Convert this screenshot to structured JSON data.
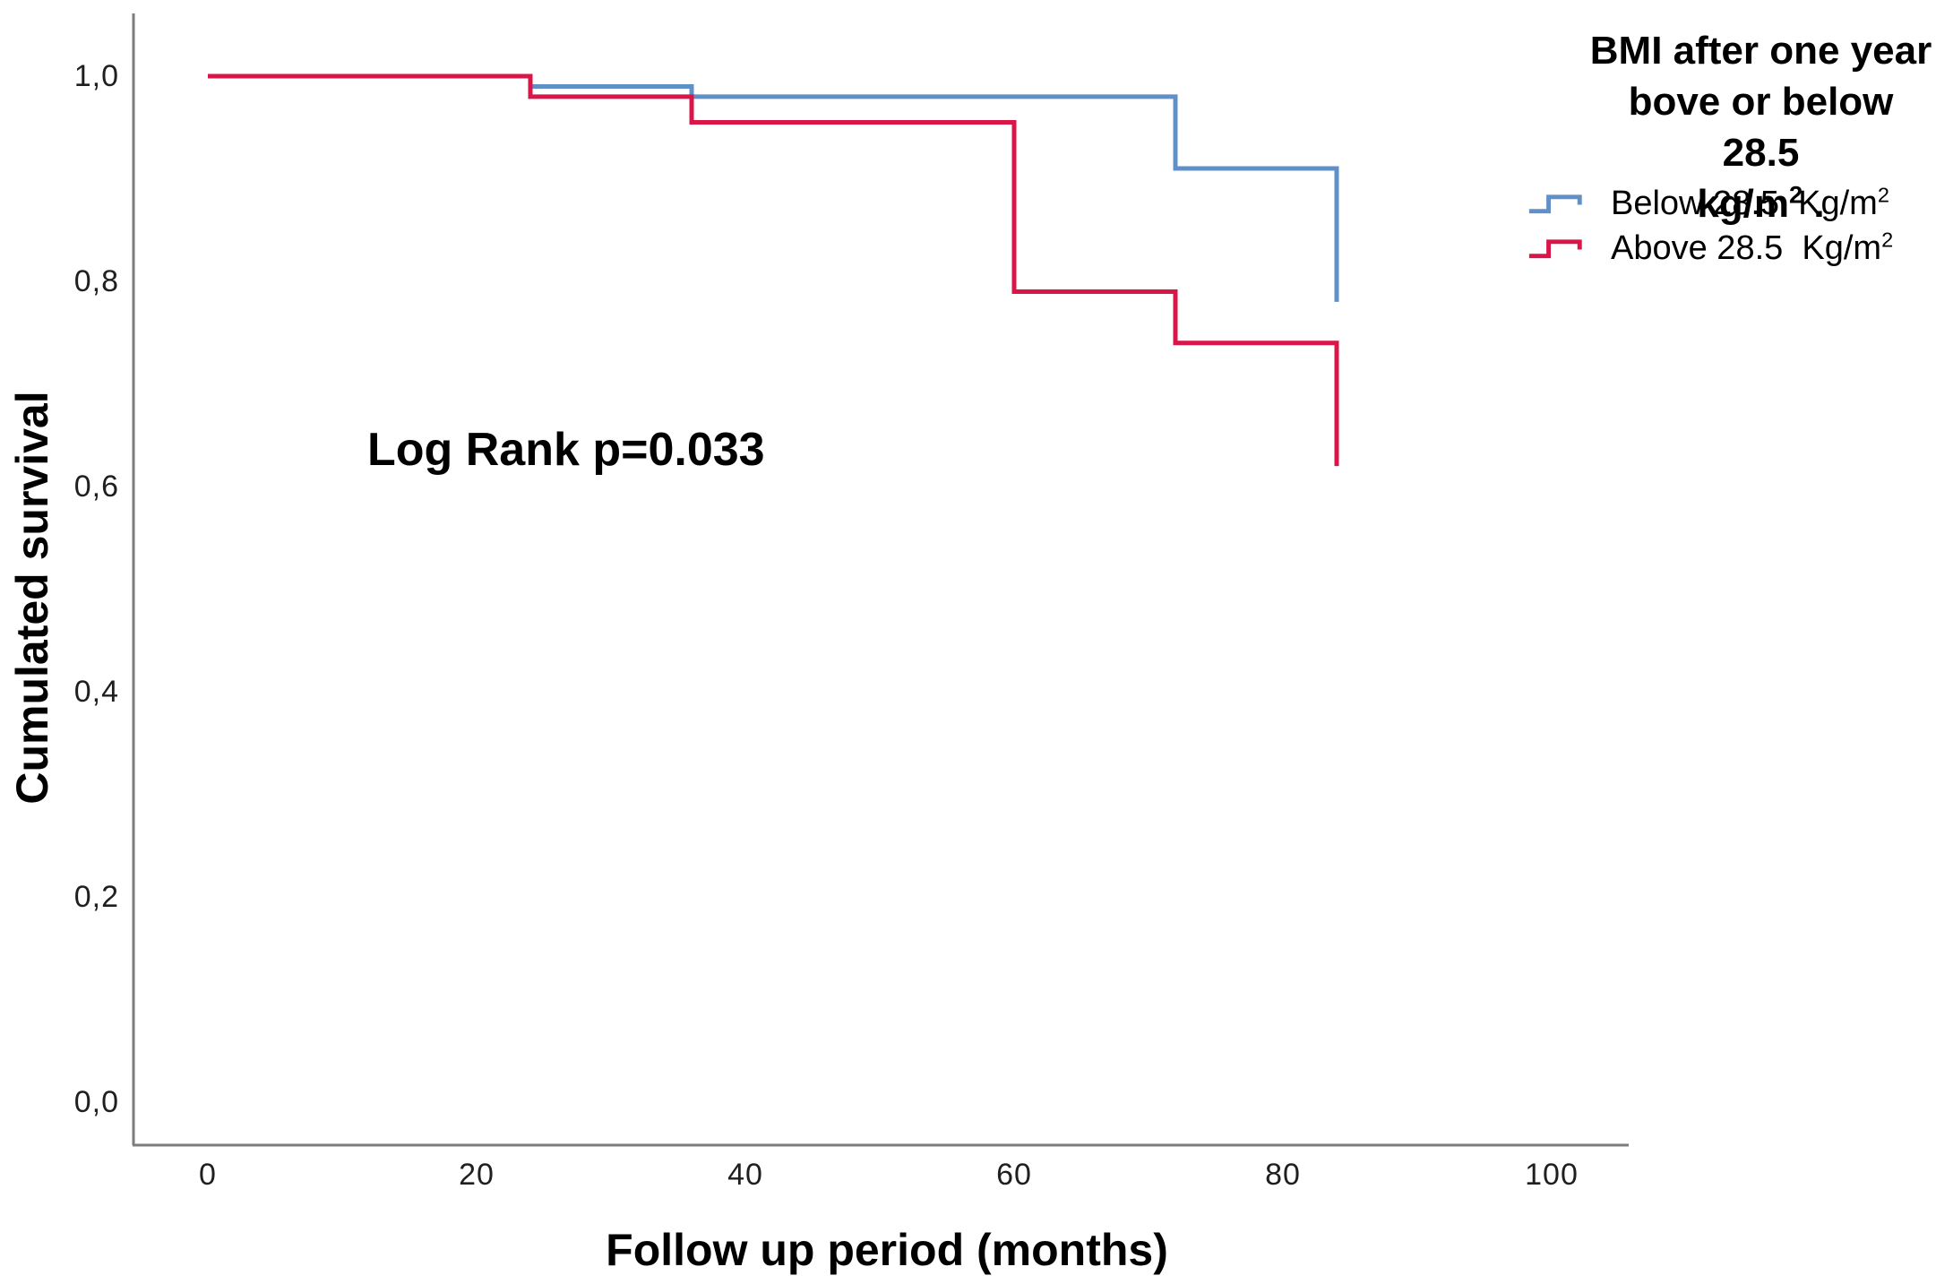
{
  "chart_data": {
    "type": "line",
    "subtype": "kaplan-meier-step-survival",
    "title": "",
    "xlabel": "Follow up period (months)",
    "ylabel": "Cumulated survival",
    "annotation": "Log Rank p=0.033",
    "p_value": "0.033",
    "x_tick_labels": [
      "0",
      "20",
      "40",
      "60",
      "80",
      "100"
    ],
    "x_tick_values": [
      0,
      20,
      40,
      60,
      80,
      100
    ],
    "y_tick_labels": [
      "1,0",
      "0,8",
      "0,6",
      "0,4",
      "0,2",
      "0,0"
    ],
    "y_tick_values": [
      1.0,
      0.8,
      0.6,
      0.4,
      0.2,
      0.0
    ],
    "xlim": [
      0,
      100
    ],
    "ylim": [
      0.0,
      1.0
    ],
    "grid": "off",
    "axis_color": "#7d7d7d",
    "legend": {
      "position": "top-right",
      "title_lines": [
        "BMI after one year",
        "bove or below 28.5",
        "kg/m² ."
      ],
      "entries": [
        {
          "label": "Below 28.5  Kg/m²",
          "color": "#6090c8"
        },
        {
          "label": "Above 28.5  Kg/m²",
          "color": "#da1547"
        }
      ]
    },
    "series": [
      {
        "name": "Below 28.5 Kg/m²",
        "color": "#6090c8",
        "points": [
          [
            0,
            1.0
          ],
          [
            24,
            1.0
          ],
          [
            24,
            0.99
          ],
          [
            36,
            0.99
          ],
          [
            36,
            0.98
          ],
          [
            72,
            0.98
          ],
          [
            72,
            0.91
          ],
          [
            84,
            0.91
          ],
          [
            84,
            0.78
          ]
        ]
      },
      {
        "name": "Above 28.5 Kg/m²",
        "color": "#da1547",
        "points": [
          [
            0,
            1.0
          ],
          [
            24,
            1.0
          ],
          [
            24,
            0.98
          ],
          [
            36,
            0.98
          ],
          [
            36,
            0.955
          ],
          [
            60,
            0.955
          ],
          [
            60,
            0.79
          ],
          [
            72,
            0.79
          ],
          [
            72,
            0.74
          ],
          [
            84,
            0.74
          ],
          [
            84,
            0.62
          ]
        ]
      }
    ]
  }
}
